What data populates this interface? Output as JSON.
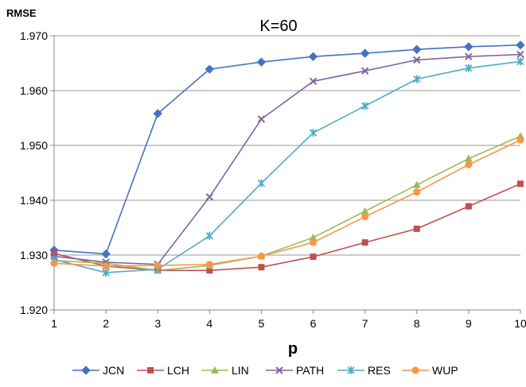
{
  "chart_data": {
    "type": "line",
    "title": "K=60",
    "xlabel": "p",
    "ylabel": "RMSE",
    "x": [
      1,
      2,
      3,
      4,
      5,
      6,
      7,
      8,
      9,
      10
    ],
    "xlim": [
      1,
      10
    ],
    "ylim": [
      1.92,
      1.97
    ],
    "yticks": [
      "1.920",
      "1.930",
      "1.940",
      "1.950",
      "1.960",
      "1.970"
    ],
    "grid": "horizontal",
    "legend_position": "bottom",
    "series": [
      {
        "name": "JCN",
        "color": "#4472C4",
        "marker": "diamond",
        "values": [
          1.9309,
          1.9302,
          1.9558,
          1.9639,
          1.9652,
          1.9662,
          1.9668,
          1.9675,
          1.968,
          1.9683
        ]
      },
      {
        "name": "LCH",
        "color": "#C0504D",
        "marker": "square",
        "values": [
          1.9303,
          1.928,
          1.9272,
          1.9272,
          1.9278,
          1.9297,
          1.9323,
          1.9348,
          1.9389,
          1.943
        ]
      },
      {
        "name": "LIN",
        "color": "#9BBB59",
        "marker": "triangle",
        "values": [
          1.929,
          1.9285,
          1.9272,
          1.9281,
          1.9298,
          1.9332,
          1.938,
          1.9428,
          1.9476,
          1.9517
        ]
      },
      {
        "name": "PATH",
        "color": "#8064A2",
        "marker": "x",
        "values": [
          1.9298,
          1.9287,
          1.9283,
          1.9406,
          1.9548,
          1.9617,
          1.9636,
          1.9656,
          1.9662,
          1.9666
        ]
      },
      {
        "name": "RES",
        "color": "#4BACC6",
        "marker": "star",
        "values": [
          1.9292,
          1.9268,
          1.9274,
          1.9335,
          1.9431,
          1.9523,
          1.9572,
          1.9621,
          1.9641,
          1.9653
        ]
      },
      {
        "name": "WUP",
        "color": "#F79646",
        "marker": "circle",
        "values": [
          1.9285,
          1.928,
          1.9281,
          1.9283,
          1.9298,
          1.9323,
          1.937,
          1.9415,
          1.9465,
          1.951
        ]
      }
    ]
  }
}
